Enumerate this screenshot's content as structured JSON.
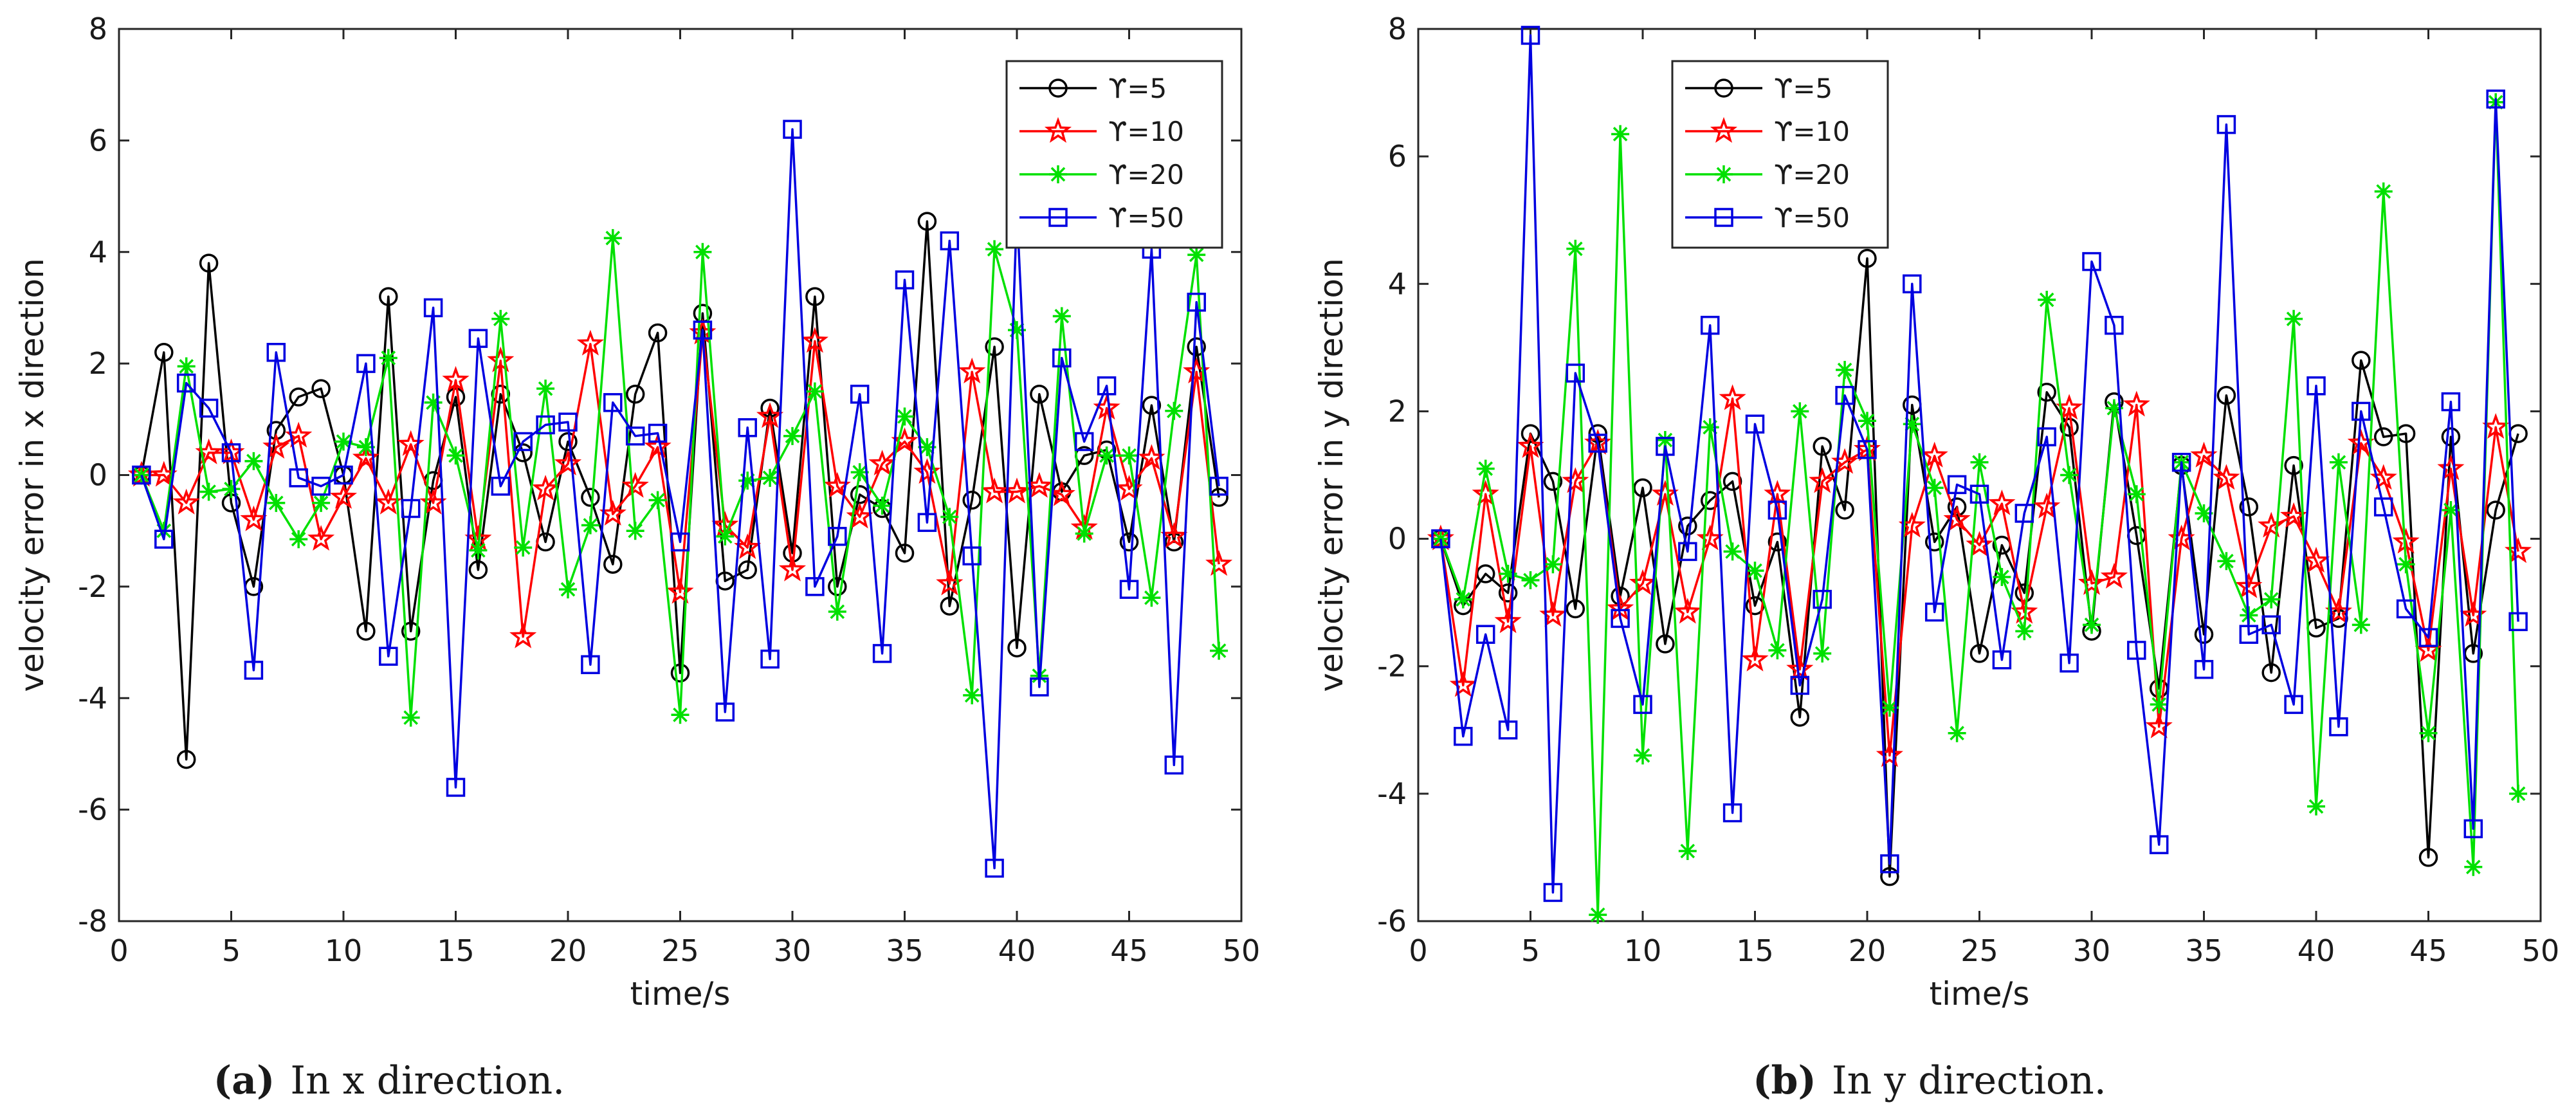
{
  "figure": {
    "captions": [
      {
        "label": "(a)",
        "text": "In x direction."
      },
      {
        "label": "(b)",
        "text": "In y direction."
      }
    ]
  },
  "chart_data": [
    {
      "type": "line",
      "title": "",
      "xlabel": "time/s",
      "ylabel": "velocity error in x direction",
      "xlim": [
        0,
        50
      ],
      "ylim": [
        -8,
        8
      ],
      "xticks": [
        0,
        5,
        10,
        15,
        20,
        25,
        30,
        35,
        40,
        45,
        50
      ],
      "yticks": [
        -8,
        -6,
        -4,
        -2,
        0,
        2,
        4,
        6,
        8
      ],
      "legend_position": "top-right",
      "x": [
        1,
        2,
        3,
        4,
        5,
        6,
        7,
        8,
        9,
        10,
        11,
        12,
        13,
        14,
        15,
        16,
        17,
        18,
        19,
        20,
        21,
        22,
        23,
        24,
        25,
        26,
        27,
        28,
        29,
        30,
        31,
        32,
        33,
        34,
        35,
        36,
        37,
        38,
        39,
        40,
        41,
        42,
        43,
        44,
        45,
        46,
        47,
        48,
        49
      ],
      "series": [
        {
          "name": "ϒ=5",
          "color": "#000000",
          "marker": "circle",
          "values": [
            0,
            2.2,
            -5.1,
            3.8,
            -0.5,
            -2,
            0.8,
            1.4,
            1.55,
            0,
            -2.8,
            3.2,
            -2.8,
            -0.1,
            1.4,
            -1.7,
            1.45,
            0.4,
            -1.2,
            0.6,
            -0.4,
            -1.6,
            1.45,
            2.55,
            -3.55,
            2.9,
            -1.9,
            -1.7,
            1.2,
            -1.4,
            3.2,
            -2,
            -0.35,
            -0.6,
            -1.4,
            4.55,
            -2.35,
            -0.45,
            2.3,
            -3.1,
            1.45,
            -0.3,
            0.35,
            0.45,
            -1.2,
            1.25,
            -1.2,
            2.3,
            -0.4
          ]
        },
        {
          "name": "ϒ=10",
          "color": "#ff0000",
          "marker": "star",
          "values": [
            0,
            0,
            -0.5,
            0.4,
            0.4,
            -0.8,
            0.5,
            0.7,
            -1.15,
            -0.4,
            0.3,
            -0.5,
            0.55,
            -0.5,
            1.7,
            -1.15,
            2.05,
            -2.9,
            -0.25,
            0.2,
            2.35,
            -0.7,
            -0.2,
            0.5,
            -2.1,
            2.55,
            -0.9,
            -1.3,
            1.05,
            -1.7,
            2.4,
            -0.2,
            -0.75,
            0.2,
            0.6,
            0.05,
            -1.95,
            1.85,
            -0.3,
            -0.3,
            -0.2,
            -0.35,
            -0.95,
            1.2,
            -0.25,
            0.3,
            -1.1,
            1.85,
            -1.6
          ]
        },
        {
          "name": "ϒ=20",
          "color": "#00e000",
          "marker": "asterisk",
          "values": [
            0,
            -1,
            1.95,
            -0.3,
            -0.25,
            0.25,
            -0.5,
            -1.15,
            -0.5,
            0.6,
            0.5,
            2.1,
            -4.35,
            1.3,
            0.35,
            -1.35,
            2.8,
            -1.3,
            1.55,
            -2.05,
            -0.9,
            4.25,
            -1,
            -0.45,
            -4.3,
            4,
            -1.1,
            -0.1,
            -0.05,
            0.7,
            1.5,
            -2.45,
            0.05,
            -0.55,
            1.05,
            0.5,
            -0.75,
            -3.95,
            4.05,
            2.6,
            -3.6,
            2.85,
            -1.05,
            0.35,
            0.35,
            -2.2,
            1.15,
            3.95,
            -3.15
          ]
        },
        {
          "name": "ϒ=50",
          "color": "#0000e0",
          "marker": "square",
          "values": [
            0,
            -1.15,
            1.65,
            1.2,
            0.4,
            -3.5,
            2.2,
            -0.05,
            -0.2,
            0,
            2,
            -3.25,
            -0.6,
            3,
            -5.6,
            2.45,
            -0.2,
            0.6,
            0.9,
            0.95,
            -3.4,
            1.3,
            0.7,
            0.75,
            -1.2,
            2.6,
            -4.25,
            0.85,
            -3.3,
            6.2,
            -2,
            -1.1,
            1.45,
            -3.2,
            3.5,
            -0.85,
            4.2,
            -1.45,
            -7.05,
            4.75,
            -3.8,
            2.1,
            0.6,
            1.6,
            -2.05,
            4.05,
            -5.2,
            3.1,
            -0.2
          ]
        }
      ]
    },
    {
      "type": "line",
      "title": "",
      "xlabel": "time/s",
      "ylabel": "velocity error in y direction",
      "xlim": [
        0,
        50
      ],
      "ylim": [
        -6,
        8
      ],
      "xticks": [
        0,
        5,
        10,
        15,
        20,
        25,
        30,
        35,
        40,
        45,
        50
      ],
      "yticks": [
        -6,
        -4,
        -2,
        0,
        2,
        4,
        6,
        8
      ],
      "legend_position": "top-left",
      "x": [
        1,
        2,
        3,
        4,
        5,
        6,
        7,
        8,
        9,
        10,
        11,
        12,
        13,
        14,
        15,
        16,
        17,
        18,
        19,
        20,
        21,
        22,
        23,
        24,
        25,
        26,
        27,
        28,
        29,
        30,
        31,
        32,
        33,
        34,
        35,
        36,
        37,
        38,
        39,
        40,
        41,
        42,
        43,
        44,
        45,
        46,
        47,
        48,
        49
      ],
      "series": [
        {
          "name": "ϒ=5",
          "color": "#000000",
          "marker": "circle",
          "values": [
            0,
            -1.05,
            -0.55,
            -0.85,
            1.65,
            0.9,
            -1.1,
            1.65,
            -0.9,
            0.8,
            -1.65,
            0.2,
            0.6,
            0.9,
            -1.05,
            -0.05,
            -2.8,
            1.45,
            0.45,
            4.4,
            -5.3,
            2.1,
            -0.05,
            0.5,
            -1.8,
            -0.1,
            -0.85,
            2.3,
            1.75,
            -1.45,
            2.15,
            0.05,
            -2.35,
            1.15,
            -1.5,
            2.25,
            0.5,
            -2.1,
            1.15,
            -1.4,
            -1.25,
            2.8,
            1.6,
            1.65,
            -5,
            1.6,
            -1.8,
            0.45,
            1.65
          ]
        },
        {
          "name": "ϒ=10",
          "color": "#ff0000",
          "marker": "star",
          "values": [
            0,
            -2.3,
            0.7,
            -1.3,
            1.45,
            -1.2,
            0.9,
            1.5,
            -1.1,
            -0.7,
            0.7,
            -1.15,
            0,
            2.2,
            -1.9,
            0.7,
            -2.05,
            0.9,
            1.2,
            1.4,
            -3.4,
            0.2,
            1.3,
            0.3,
            -0.1,
            0.55,
            -1.15,
            0.5,
            2.05,
            -0.7,
            -0.6,
            2.1,
            -2.95,
            0,
            1.3,
            0.95,
            -0.75,
            0.2,
            0.35,
            -0.35,
            -1.15,
            1.5,
            0.95,
            -0.05,
            -1.75,
            1.1,
            -1.2,
            1.75,
            -0.2
          ]
        },
        {
          "name": "ϒ=20",
          "color": "#00e000",
          "marker": "asterisk",
          "values": [
            0,
            -0.95,
            1.1,
            -0.55,
            -0.65,
            -0.4,
            4.55,
            -5.9,
            6.35,
            -3.4,
            1.55,
            -4.9,
            1.75,
            -0.2,
            -0.5,
            -1.75,
            2,
            -1.8,
            2.65,
            1.85,
            -2.65,
            1.8,
            0.8,
            -3.05,
            1.2,
            -0.6,
            -1.45,
            3.75,
            1,
            -1.35,
            2.05,
            0.7,
            -2.6,
            1.2,
            0.4,
            -0.35,
            -1.2,
            -0.95,
            3.45,
            -4.2,
            1.2,
            -1.35,
            5.45,
            -0.4,
            -3.05,
            0.45,
            -5.15,
            6.85,
            -4
          ]
        },
        {
          "name": "ϒ=50",
          "color": "#0000e0",
          "marker": "square",
          "values": [
            0,
            -3.1,
            -1.5,
            -3,
            7.9,
            -5.55,
            2.6,
            1.5,
            -1.25,
            -2.6,
            1.45,
            -0.2,
            3.35,
            -4.3,
            1.8,
            0.45,
            -2.3,
            -0.95,
            2.25,
            1.4,
            -5.1,
            4,
            -1.15,
            0.85,
            0.7,
            -1.9,
            0.4,
            1.6,
            -1.95,
            4.35,
            3.35,
            -1.75,
            -4.8,
            1.2,
            -2.05,
            6.5,
            -1.5,
            -1.35,
            -2.6,
            2.4,
            -2.95,
            2,
            0.5,
            -1.1,
            -1.55,
            2.15,
            -4.55,
            6.9,
            -1.3
          ]
        }
      ]
    }
  ]
}
